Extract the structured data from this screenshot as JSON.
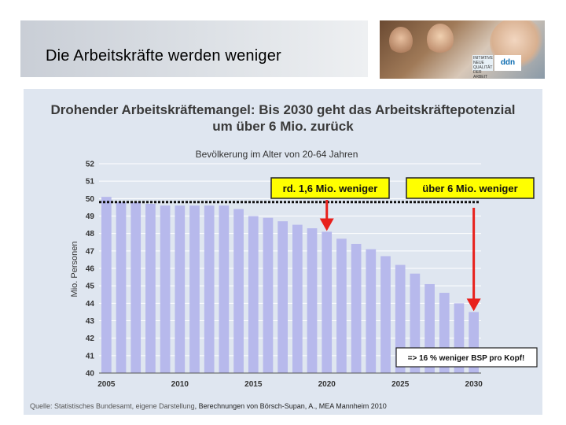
{
  "slide": {
    "title": "Die Arbeitskräfte werden weniger",
    "photo_logo_text": "ddn",
    "photo_logo_small": "INITIATIVE NEUE QUALITÄT DER ARBEIT"
  },
  "chart_data": {
    "type": "bar",
    "title": "Drohender Arbeitskräftemangel: Bis 2030 geht das Arbeitskräftepotenzial",
    "title_line2": "um über 6 Mio. zurück",
    "subtitle": "Bevölkerung im Alter von 20-64 Jahren",
    "ylabel": "Mio. Personen",
    "ylim": [
      40,
      52
    ],
    "yticks": [
      "40",
      "41",
      "42",
      "43",
      "44",
      "45",
      "46",
      "47",
      "48",
      "49",
      "50",
      "51",
      "52"
    ],
    "xticks": [
      "2005",
      "2010",
      "2015",
      "2020",
      "2025",
      "2030"
    ],
    "categories": [
      "2005",
      "2006",
      "2007",
      "2008",
      "2009",
      "2010",
      "2011",
      "2012",
      "2013",
      "2014",
      "2015",
      "2016",
      "2017",
      "2018",
      "2019",
      "2020",
      "2021",
      "2022",
      "2023",
      "2024",
      "2025",
      "2026",
      "2027",
      "2028",
      "2029",
      "2030"
    ],
    "values": [
      50.1,
      49.8,
      49.8,
      49.7,
      49.6,
      49.6,
      49.6,
      49.6,
      49.6,
      49.4,
      49.0,
      48.9,
      48.7,
      48.5,
      48.3,
      48.1,
      47.7,
      47.4,
      47.1,
      46.7,
      46.2,
      45.7,
      45.1,
      44.6,
      44.0,
      43.5
    ],
    "reference_value": 49.8,
    "grid": true,
    "bar_color": "#b7b9ec",
    "arrow_color": "#e8201c",
    "box_fill": "#ffff00",
    "annotation_1": "rd. 1,6 Mio. weniger",
    "annotation_2": "über 6 Mio. weniger",
    "annotation_3": "=> 16 % weniger BSP pro Kopf!",
    "source_part1": "Quelle: Statistisches Bundesamt, eigene Darstellung",
    "source_part2": ", Berechnungen von Börsch-Supan, A., MEA Mannheim 2010"
  }
}
